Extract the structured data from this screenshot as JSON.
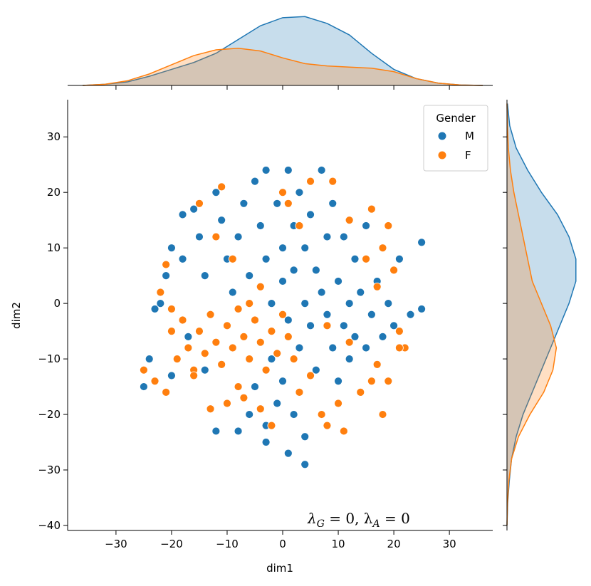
{
  "chart_data": {
    "type": "scatter",
    "xlabel": "dim1",
    "ylabel": "dim2",
    "xlim": [
      -38.7,
      37.8
    ],
    "ylim": [
      -40.9,
      36.7
    ],
    "xticks": [
      {
        "value": -30,
        "label": "−30"
      },
      {
        "value": -20,
        "label": "−20"
      },
      {
        "value": -10,
        "label": "−10"
      },
      0,
      10,
      20,
      30
    ],
    "yticks": [
      {
        "value": -40,
        "label": "−40"
      },
      {
        "value": -30,
        "label": "−30"
      },
      {
        "value": -20,
        "label": "−20"
      },
      {
        "value": -10,
        "label": "−10"
      },
      0,
      10,
      20,
      30
    ],
    "legend_title": "Gender",
    "legend": "upper right",
    "annotation_parts": [
      "λ",
      "G",
      " = 0,  λ",
      "A",
      " = 0"
    ],
    "series": [
      {
        "name": "M",
        "color": "#1f77b4",
        "x": [
          -25,
          -24,
          -23,
          -21,
          -20,
          -18,
          -16,
          -15,
          -14,
          -12,
          -11,
          -10,
          -9,
          -8,
          -7,
          -6,
          -5,
          -4,
          -3,
          -3,
          -2,
          -1,
          0,
          0,
          1,
          1,
          2,
          2,
          3,
          3,
          4,
          4,
          5,
          5,
          6,
          6,
          7,
          7,
          8,
          8,
          9,
          9,
          10,
          10,
          11,
          11,
          12,
          12,
          13,
          13,
          14,
          15,
          15,
          16,
          17,
          18,
          19,
          20,
          21,
          23,
          25,
          25,
          -2,
          -1,
          -3,
          -5,
          -6,
          -8,
          0,
          2,
          4,
          4,
          1,
          -3,
          -12,
          -14,
          -17,
          -20,
          -22,
          -18
        ],
        "y": [
          -15,
          -10,
          -1,
          5,
          10,
          16,
          17,
          12,
          5,
          20,
          15,
          8,
          2,
          12,
          18,
          5,
          22,
          14,
          8,
          24,
          0,
          18,
          10,
          4,
          24,
          -3,
          14,
          6,
          20,
          -8,
          0,
          10,
          16,
          -4,
          6,
          -12,
          24,
          2,
          12,
          -2,
          -8,
          18,
          4,
          -14,
          -4,
          12,
          0,
          -10,
          8,
          -6,
          2,
          -8,
          14,
          -2,
          4,
          -6,
          0,
          -4,
          8,
          -2,
          11,
          -1,
          -10,
          -18,
          -22,
          -15,
          -20,
          -23,
          -14,
          -20,
          -24,
          -29,
          -27,
          -25,
          -23,
          -12,
          -6,
          -13,
          0,
          8
        ]
      },
      {
        "name": "F",
        "color": "#ff7f0e",
        "x": [
          -25,
          -23,
          -21,
          -20,
          -19,
          -18,
          -17,
          -16,
          -15,
          -14,
          -13,
          -12,
          -11,
          -10,
          -9,
          -8,
          -7,
          -6,
          -5,
          -4,
          -3,
          -2,
          -1,
          0,
          1,
          2,
          -8,
          -10,
          -13,
          -16,
          -21,
          -22,
          -20,
          -15,
          -11,
          -9,
          -6,
          -4,
          0,
          1,
          5,
          3,
          9,
          12,
          16,
          18,
          19,
          20,
          21,
          22,
          17,
          16,
          19,
          18,
          14,
          10,
          8,
          11,
          7,
          8,
          12,
          5,
          3,
          -2,
          -4,
          -7,
          21,
          17,
          15,
          -12
        ],
        "y": [
          -12,
          -14,
          -16,
          -5,
          -10,
          -3,
          -8,
          -12,
          -5,
          -9,
          -2,
          -7,
          -11,
          -4,
          -8,
          -1,
          -6,
          -10,
          -3,
          -7,
          -12,
          -5,
          -9,
          -2,
          -6,
          -10,
          -15,
          -18,
          -19,
          -13,
          7,
          2,
          -1,
          18,
          21,
          8,
          0,
          3,
          20,
          18,
          22,
          14,
          22,
          15,
          17,
          10,
          14,
          6,
          -5,
          -8,
          -11,
          -14,
          -14,
          -20,
          -16,
          -18,
          -22,
          -23,
          -20,
          -4,
          -7,
          -13,
          -16,
          -22,
          -19,
          -17,
          -8,
          3,
          8,
          12
        ]
      }
    ],
    "marginal_x": {
      "grid": [
        -36,
        -32,
        -28,
        -24,
        -20,
        -16,
        -12,
        -8,
        -4,
        0,
        4,
        8,
        12,
        16,
        20,
        24,
        28,
        32,
        36
      ],
      "ylim": [
        0,
        0.031
      ],
      "series": [
        {
          "color": "#1f77b4",
          "values": [
            0,
            0.0005,
            0.0015,
            0.004,
            0.007,
            0.01,
            0.014,
            0.02,
            0.026,
            0.0295,
            0.03,
            0.027,
            0.022,
            0.014,
            0.007,
            0.003,
            0.001,
            0.0002,
            0
          ]
        },
        {
          "color": "#ff7f0e",
          "values": [
            0,
            0.0005,
            0.002,
            0.005,
            0.009,
            0.013,
            0.0155,
            0.0162,
            0.015,
            0.012,
            0.0095,
            0.0085,
            0.008,
            0.0075,
            0.006,
            0.003,
            0.001,
            0.0002,
            0
          ]
        }
      ]
    },
    "marginal_y": {
      "grid": [
        -40,
        -36,
        -32,
        -28,
        -24,
        -20,
        -16,
        -12,
        -8,
        -4,
        0,
        4,
        8,
        12,
        16,
        20,
        24,
        28,
        32,
        36
      ],
      "xlim": [
        0,
        0.031
      ],
      "series": [
        {
          "color": "#1f77b4",
          "values": [
            0,
            0.0003,
            0.001,
            0.002,
            0.004,
            0.007,
            0.011,
            0.015,
            0.019,
            0.023,
            0.027,
            0.03,
            0.03,
            0.027,
            0.022,
            0.015,
            0.009,
            0.004,
            0.0012,
            0.0002
          ]
        },
        {
          "color": "#ff7f0e",
          "values": [
            0,
            0.0002,
            0.0008,
            0.002,
            0.005,
            0.01,
            0.016,
            0.02,
            0.0215,
            0.019,
            0.015,
            0.011,
            0.009,
            0.007,
            0.005,
            0.003,
            0.0015,
            0.0006,
            0.0002,
            0
          ]
        }
      ]
    }
  }
}
